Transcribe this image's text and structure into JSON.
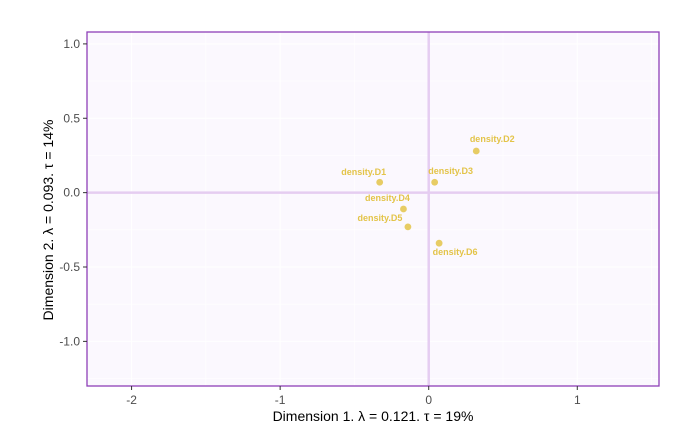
{
  "chart_data": {
    "type": "scatter",
    "title": "",
    "xlabel": "Dimension 1.   λ = 0.121.   τ = 19%",
    "ylabel": "Dimension 2.   λ = 0.093.   τ = 14%",
    "xlim": [
      -2.3,
      1.55
    ],
    "ylim": [
      -1.3,
      1.08
    ],
    "x_ticks": [
      -2,
      -1,
      0,
      1
    ],
    "y_ticks": [
      1.0,
      0.5,
      0.0,
      -0.5,
      -1.0
    ],
    "x_tick_labels": [
      "-2",
      "-1",
      "0",
      "1"
    ],
    "y_tick_labels": [
      "1.0",
      "0.5",
      "0.0",
      "-0.5",
      "-1.0"
    ],
    "grid": true,
    "legend": "none",
    "points": [
      {
        "label": "density.D1",
        "x": -0.33,
        "y": 0.07
      },
      {
        "label": "density.D2",
        "x": 0.32,
        "y": 0.28
      },
      {
        "label": "density.D3",
        "x": 0.04,
        "y": 0.07
      },
      {
        "label": "density.D4",
        "x": -0.17,
        "y": -0.11
      },
      {
        "label": "density.D5",
        "x": -0.14,
        "y": -0.23
      },
      {
        "label": "density.D6",
        "x": 0.07,
        "y": -0.34
      }
    ],
    "colors": {
      "panel_border": "#8e3fb8",
      "panel_background": "#fbf8fe",
      "grid": "#ffffff",
      "zero_lines": "#e5cdf1",
      "points": "#e3c449",
      "labels": "#e3c449"
    }
  }
}
